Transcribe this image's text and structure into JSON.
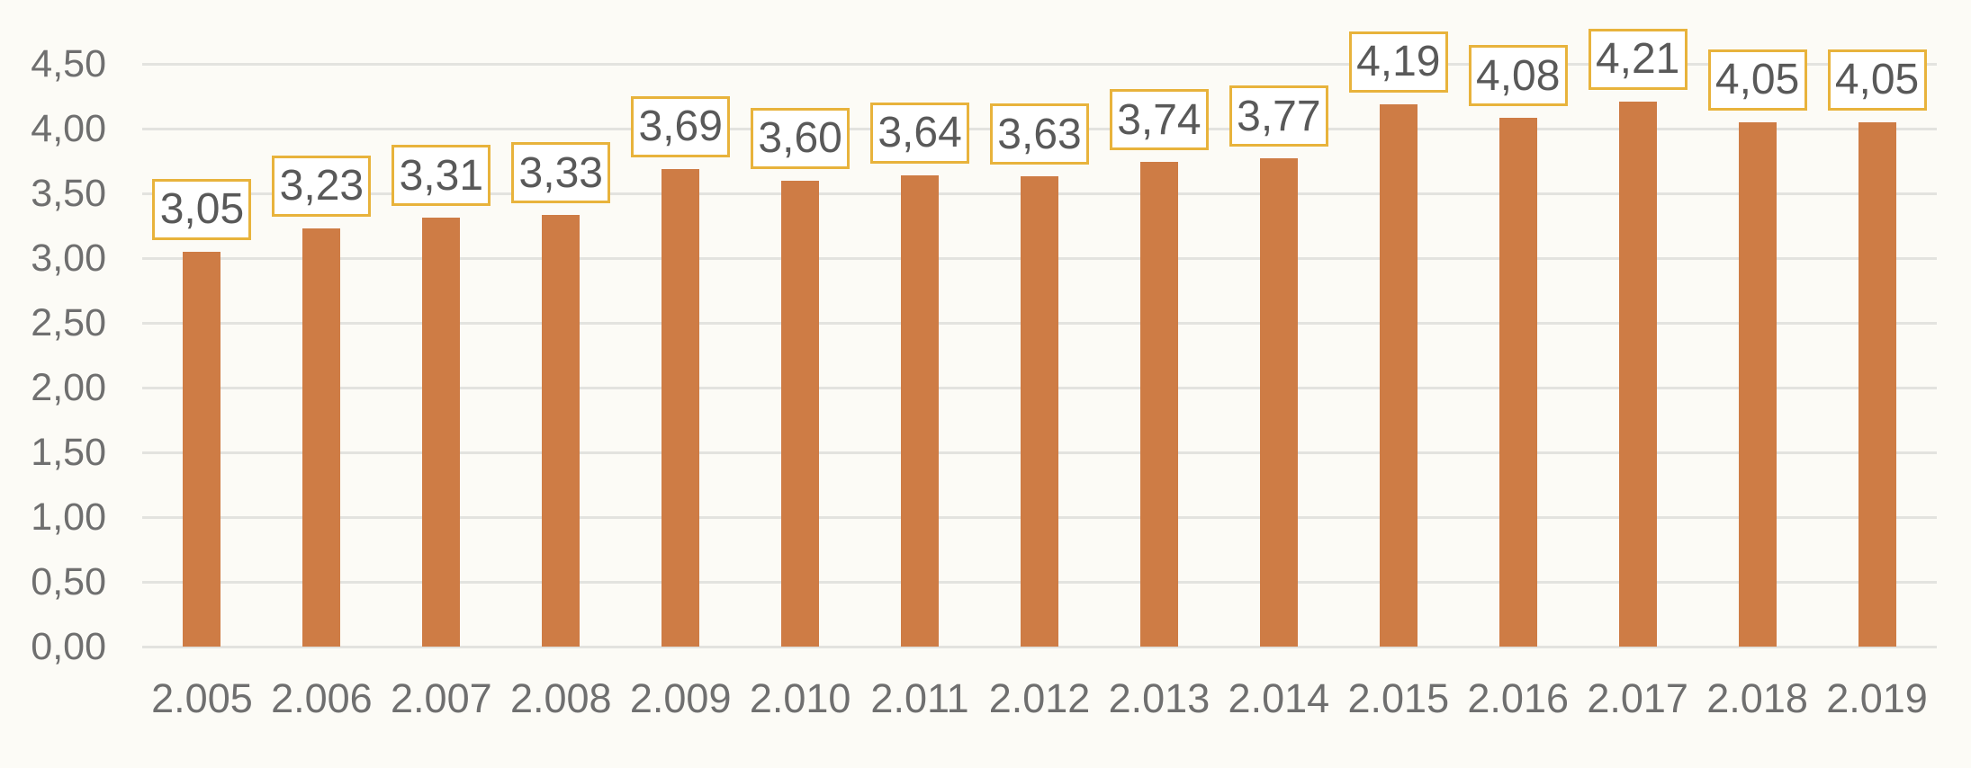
{
  "chart_data": {
    "type": "bar",
    "title": "",
    "xlabel": "",
    "ylabel": "",
    "categories": [
      "2.005",
      "2.006",
      "2.007",
      "2.008",
      "2.009",
      "2.010",
      "2.011",
      "2.012",
      "2.013",
      "2.014",
      "2.015",
      "2.016",
      "2.017",
      "2.018",
      "2.019"
    ],
    "values": [
      3.05,
      3.23,
      3.31,
      3.33,
      3.69,
      3.6,
      3.64,
      3.63,
      3.74,
      3.77,
      4.19,
      4.08,
      4.21,
      4.05,
      4.05
    ],
    "value_labels": [
      "3,05",
      "3,23",
      "3,31",
      "3,33",
      "3,69",
      "3,60",
      "3,64",
      "3,63",
      "3,74",
      "3,77",
      "4,19",
      "4,08",
      "4,21",
      "4,05",
      "4,05"
    ],
    "ylim": [
      0,
      4.5
    ],
    "y_tick_values": [
      0,
      0.5,
      1,
      1.5,
      2,
      2.5,
      3,
      3.5,
      4,
      4.5
    ],
    "y_tick_labels": [
      "0,00",
      "0,50",
      "1,00",
      "1,50",
      "2,00",
      "2,50",
      "3,00",
      "3,50",
      "4,00",
      "4,50"
    ],
    "grid": true,
    "legend": false,
    "number_format": "decimal-comma",
    "colors": {
      "bar": "#CE7C45",
      "data_label_border": "#E8B33C",
      "data_label_background": "#FFFFFF",
      "data_label_text": "#595959",
      "axis_text": "#6F6F6F",
      "gridline": "#E3E3DF",
      "background": "#FCFBF6"
    }
  }
}
